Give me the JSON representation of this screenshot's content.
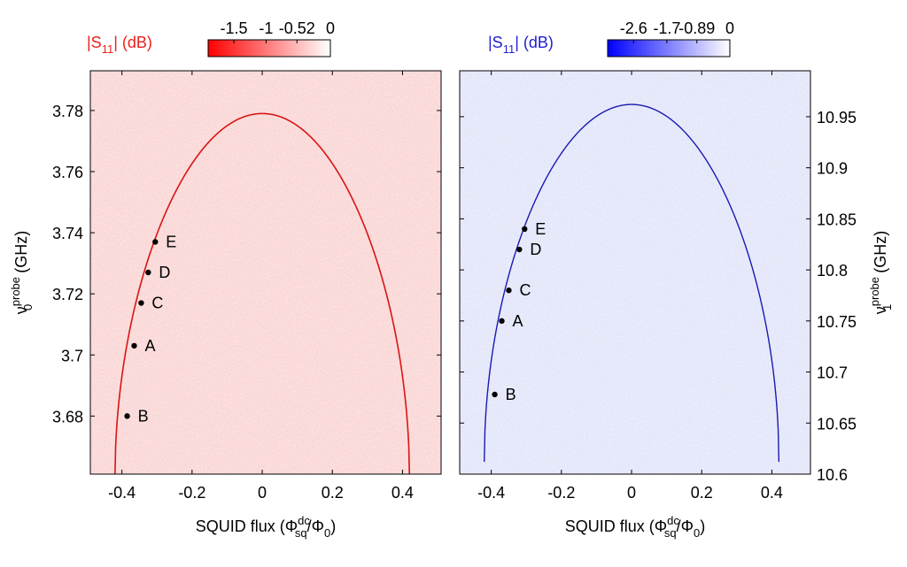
{
  "chart_data": [
    {
      "type": "heatmap",
      "panel": "left",
      "colorbar": {
        "label": "|S11| (dB)",
        "label_parts": [
          "|S",
          "11",
          "| (dB)"
        ],
        "ticks": [
          "-1.5",
          "-1",
          "-0.52",
          "0"
        ],
        "range": [
          -1.9,
          0
        ],
        "color_min": "#ff0000",
        "color_max": "#ffffff",
        "label_color": "#e8211d"
      },
      "xlabel": "SQUID flux (Φsqdc/Φ0)",
      "xlabel_parts": {
        "text": "SQUID flux (Φ",
        "sup": "dc",
        "sub": "sq",
        "mid": "/Φ",
        "sub2": "0",
        "end": ")"
      },
      "ylabel": "ν0probe (GHz)",
      "ylabel_parts": {
        "text": "ν",
        "sub": "0",
        "sup": "probe",
        "end": " (GHz)"
      },
      "xticks": [
        -0.4,
        -0.2,
        0,
        0.2,
        0.4
      ],
      "xtick_labels": [
        "-0.4",
        "-0.2",
        "0",
        "0.2",
        "0.4"
      ],
      "yticks": [
        3.68,
        3.7,
        3.72,
        3.74,
        3.76,
        3.78
      ],
      "ytick_labels": [
        "3.68",
        "3.7",
        "3.72",
        "3.74",
        "3.76",
        "3.78"
      ],
      "xlim": [
        -0.49,
        0.51
      ],
      "ylim": [
        3.661,
        3.793
      ],
      "background_color": "#fbe7e6",
      "line_color": "#d91414",
      "curve": {
        "peak_frequency": 3.779,
        "peak_flux": 0.0,
        "zero_flux_edges": [
          -0.42,
          0.42
        ],
        "model": "f_peak * sqrt(|cos(pi*flux)|)",
        "min_frequency": 3.659
      },
      "labeled_points": [
        {
          "label": "B",
          "x": -0.385,
          "y": 3.68
        },
        {
          "label": "A",
          "x": -0.365,
          "y": 3.703
        },
        {
          "label": "C",
          "x": -0.345,
          "y": 3.717
        },
        {
          "label": "D",
          "x": -0.325,
          "y": 3.727
        },
        {
          "label": "E",
          "x": -0.305,
          "y": 3.737
        }
      ]
    },
    {
      "type": "heatmap",
      "panel": "right",
      "colorbar": {
        "label": "|S11| (dB)",
        "label_parts": [
          "|S",
          "11",
          "| (dB)"
        ],
        "ticks": [
          "-2.6",
          "-1.7",
          "-0.89",
          "0"
        ],
        "range": [
          -3.3,
          0
        ],
        "color_min": "#0000ff",
        "color_max": "#ffffff",
        "label_color": "#1f1fcf"
      },
      "xlabel": "SQUID flux (Φsqdc/Φ0)",
      "xlabel_parts": {
        "text": "SQUID flux (Φ",
        "sup": "dc",
        "sub": "sq",
        "mid": "/Φ",
        "sub2": "0",
        "end": ")"
      },
      "ylabel": "ν1probe (GHz)",
      "ylabel_parts": {
        "text": "ν",
        "sub": "1",
        "sup": "probe",
        "end": " (GHz)"
      },
      "xticks": [
        -0.4,
        -0.2,
        0,
        0.2,
        0.4
      ],
      "xtick_labels": [
        "-0.4",
        "-0.2",
        "0",
        "0.2",
        "0.4"
      ],
      "yticks": [
        10.6,
        10.65,
        10.7,
        10.75,
        10.8,
        10.85,
        10.9,
        10.95
      ],
      "ytick_labels": [
        "10.6",
        "10.65",
        "10.7",
        "10.75",
        "10.8",
        "10.85",
        "10.9",
        "10.95"
      ],
      "xlim": [
        -0.49,
        0.51
      ],
      "ylim": [
        10.6,
        10.995
      ],
      "background_color": "#eceefa",
      "line_color": "#1a1ab0",
      "curve": {
        "peak_frequency": 10.962,
        "peak_flux": 0.0,
        "zero_flux_edges": [
          -0.42,
          0.42
        ],
        "model": "f_peak * sqrt(|cos(pi*flux)|)",
        "min_frequency": 10.612
      },
      "labeled_points": [
        {
          "label": "B",
          "x": -0.39,
          "y": 10.678
        },
        {
          "label": "A",
          "x": -0.37,
          "y": 10.75
        },
        {
          "label": "C",
          "x": -0.35,
          "y": 10.78
        },
        {
          "label": "D",
          "x": -0.32,
          "y": 10.82
        },
        {
          "label": "E",
          "x": -0.305,
          "y": 10.84
        }
      ]
    }
  ]
}
